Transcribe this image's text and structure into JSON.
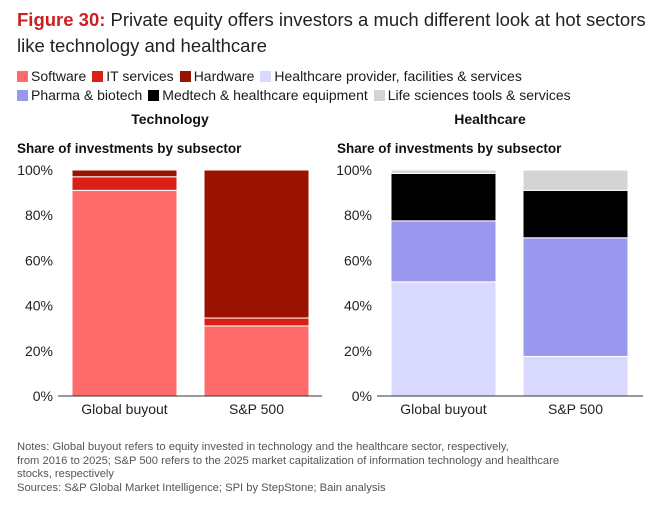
{
  "title": {
    "figure_label": "Figure 30:",
    "text": " Private equity offers investors a much different look at hot sectors like technology and healthcare"
  },
  "legend": [
    {
      "name": "Software",
      "color": "#ff6b6b"
    },
    {
      "name": "IT services",
      "color": "#d91f16"
    },
    {
      "name": "Hardware",
      "color": "#9a1300"
    },
    {
      "name": "Healthcare provider, facilities & services",
      "color": "#d9d9ff"
    },
    {
      "name": "Pharma & biotech",
      "color": "#9a97ee"
    },
    {
      "name": "Medtech & healthcare equipment",
      "color": "#000000"
    },
    {
      "name": "Life sciences tools & services",
      "color": "#d4d4d4"
    }
  ],
  "chart_data": [
    {
      "type": "bar",
      "stacked": true,
      "title": "Technology",
      "subtitle": "Share of investments by subsector",
      "categories": [
        "Global buyout",
        "S&P 500"
      ],
      "ylim": [
        0,
        100
      ],
      "yticks": [
        "0%",
        "20%",
        "40%",
        "60%",
        "80%",
        "100%"
      ],
      "series": [
        {
          "name": "Software",
          "color": "#ff6b6b",
          "values": [
            91,
            31
          ]
        },
        {
          "name": "IT services",
          "color": "#d91f16",
          "values": [
            6,
            3.5
          ]
        },
        {
          "name": "Hardware",
          "color": "#9a1300",
          "values": [
            3,
            65.5
          ]
        }
      ]
    },
    {
      "type": "bar",
      "stacked": true,
      "title": "Healthcare",
      "subtitle": "Share of investments by subsector",
      "categories": [
        "Global buyout",
        "S&P 500"
      ],
      "ylim": [
        0,
        100
      ],
      "yticks": [
        "0%",
        "20%",
        "40%",
        "60%",
        "80%",
        "100%"
      ],
      "series": [
        {
          "name": "Healthcare provider, facilities & services",
          "color": "#d9d9ff",
          "values": [
            50.5,
            17.5
          ]
        },
        {
          "name": "Pharma & biotech",
          "color": "#9a97ee",
          "values": [
            27,
            52.5
          ]
        },
        {
          "name": "Medtech & healthcare equipment",
          "color": "#000000",
          "values": [
            21,
            21
          ]
        },
        {
          "name": "Life sciences tools & services",
          "color": "#d4d4d4",
          "values": [
            1.5,
            9
          ]
        }
      ]
    }
  ],
  "notes": [
    "Notes: Global buyout refers to equity invested in technology and the healthcare sector, respectively,",
    "from 2016 to 2025; S&P 500 refers to the 2025 market capitalization of information technology and healthcare",
    "stocks, respectively",
    "Sources: S&P Global Market Intelligence; SPI by StepStone; Bain analysis"
  ]
}
